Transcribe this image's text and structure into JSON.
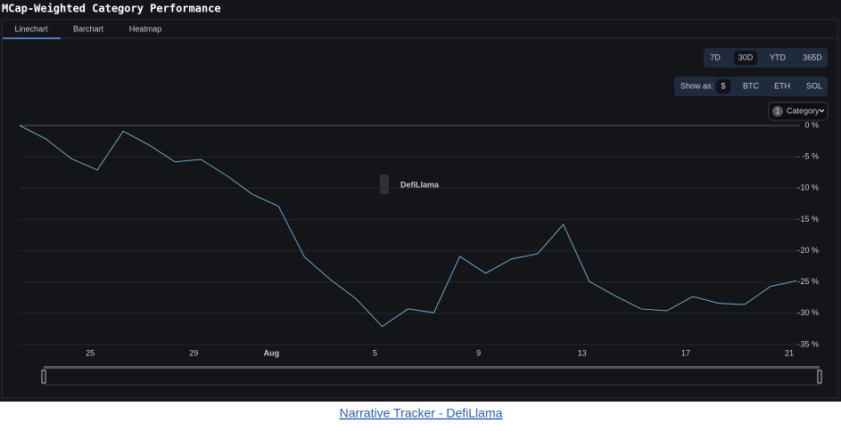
{
  "header": {
    "title": "MCap-Weighted Category Performance"
  },
  "tabs": [
    "Linechart",
    "Barchart",
    "Heatmap"
  ],
  "ranges": [
    "7D",
    "30D",
    "YTD",
    "365D"
  ],
  "show_as": {
    "label": "Show as:",
    "options": [
      "$",
      "BTC",
      "ETH",
      "SOL"
    ]
  },
  "category_button": {
    "count": "1",
    "label": "Category"
  },
  "watermark": "DefiLlama",
  "caption": "Narrative Tracker - DefiLlama",
  "chart_data": {
    "type": "line",
    "categories": [
      null,
      null,
      null,
      "25",
      null,
      null,
      null,
      "29",
      null,
      null,
      "Aug",
      null,
      null,
      null,
      "5",
      null,
      null,
      null,
      "9",
      null,
      null,
      null,
      "13",
      null,
      null,
      null,
      "17",
      null,
      null,
      null,
      "21"
    ],
    "series": [
      {
        "color": "#6fa8c8",
        "values": [
          0,
          -2.1,
          -5.3,
          -7.1,
          -0.9,
          -3.1,
          -5.8,
          -5.4,
          -8.0,
          -11.0,
          -12.9,
          -21.0,
          -24.6,
          -27.7,
          -32.1,
          -29.3,
          -29.9,
          -20.9,
          -23.6,
          -21.3,
          -20.5,
          -15.8,
          -24.9,
          -27.2,
          -29.3,
          -29.6,
          -27.3,
          -28.4,
          -28.6,
          -25.7,
          -24.8
        ]
      }
    ],
    "ylim": [
      -35,
      0
    ],
    "yticks": [
      {
        "value": 0,
        "label": "0 %"
      },
      {
        "value": -5,
        "label": "-5 %"
      },
      {
        "value": -10,
        "label": "-10 %"
      },
      {
        "value": -15,
        "label": "-15 %"
      },
      {
        "value": -20,
        "label": "-20 %"
      },
      {
        "value": -25,
        "label": "-25 %"
      },
      {
        "value": -30,
        "label": "-30 %"
      },
      {
        "value": -35,
        "label": "-35 %"
      }
    ],
    "grid": true
  }
}
